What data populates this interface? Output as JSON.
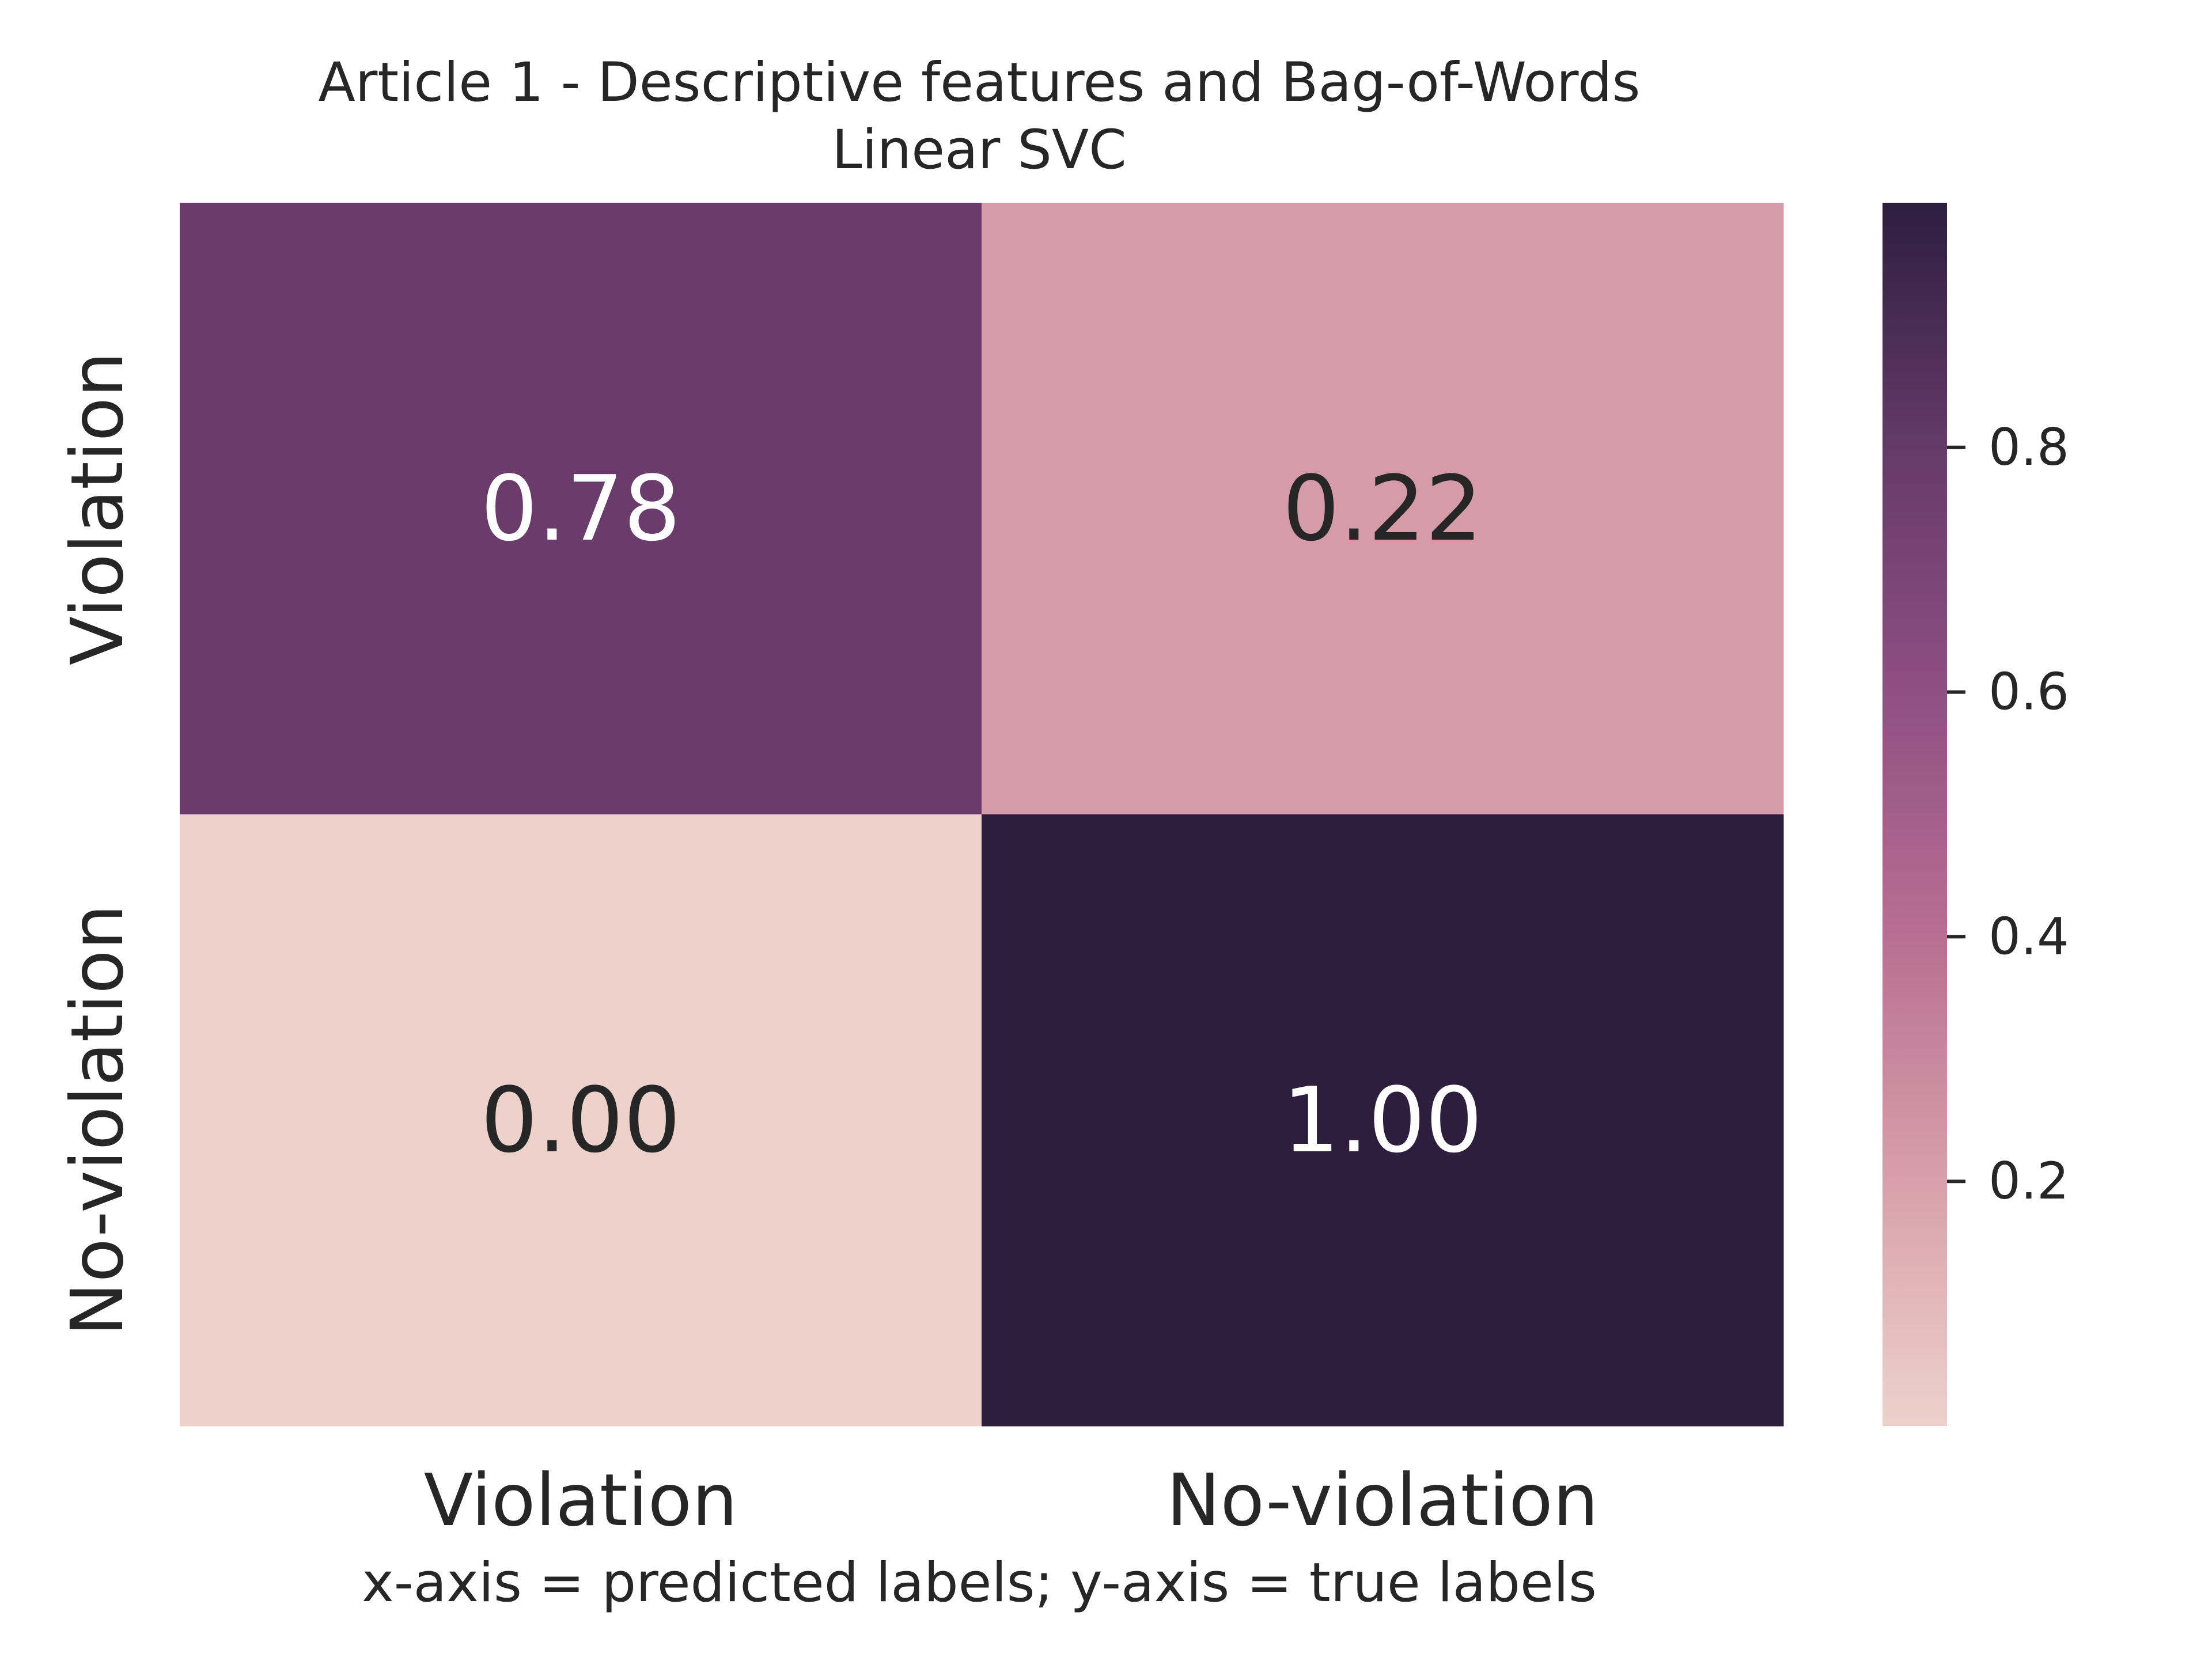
{
  "chart_data": {
    "type": "heatmap",
    "title": "Article 1 - Descriptive features and Bag-of-Words",
    "subtitle": "Linear SVC",
    "xlabel": "x-axis = predicted labels; y-axis = true labels",
    "ylabel": "",
    "x_categories": [
      "Violation",
      "No-violation"
    ],
    "y_categories": [
      "Violation",
      "No-violation"
    ],
    "values": [
      [
        0.78,
        0.22
      ],
      [
        0.0,
        1.0
      ]
    ],
    "cell_labels": [
      [
        "0.78",
        "0.22"
      ],
      [
        "0.00",
        "1.00"
      ]
    ],
    "colorbar": {
      "range": [
        0.0,
        1.0
      ],
      "ticks": [
        0.2,
        0.4,
        0.6,
        0.8
      ],
      "tick_labels": [
        "0.2",
        "0.4",
        "0.6",
        "0.8"
      ]
    },
    "colormap": [
      "#edd1cb",
      "#d8a0aa",
      "#b86f92",
      "#8f4f83",
      "#653a69",
      "#2d1e3e"
    ],
    "light_text_color": "#ffffff",
    "dark_text_color": "#262626",
    "grid": false,
    "legend": "none"
  }
}
